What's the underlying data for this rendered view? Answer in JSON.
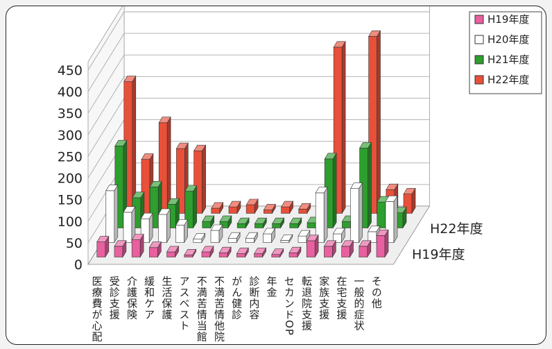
{
  "chart_data": {
    "type": "bar",
    "title": "",
    "xlabel": "",
    "ylabel": "",
    "ylim": [
      0,
      450
    ],
    "yticks": [
      "0",
      "50",
      "100",
      "150",
      "200",
      "250",
      "300",
      "350",
      "400",
      "450"
    ],
    "depth_labels": [
      "H22年度",
      "H19年度"
    ],
    "legend_position": "top-right",
    "categories": [
      "医療費が心配",
      "受診支援",
      "介護保険",
      "緩和ケア",
      "生活保護",
      "アスベスト",
      "不満苦情当館",
      "不満苦情他院",
      "がん健診",
      "診断内容",
      "年金",
      "セカンドOP",
      "転退院支援",
      "家族支援",
      "在宅支援",
      "一般的症状",
      "その他"
    ],
    "series": [
      {
        "name": "H19年度",
        "color": "#e8609f",
        "values": [
          35,
          25,
          40,
          22,
          12,
          5,
          12,
          10,
          8,
          8,
          6,
          10,
          38,
          25,
          25,
          25,
          50
        ]
      },
      {
        "name": "H20年度",
        "color": "#ffffff",
        "values": [
          120,
          70,
          55,
          65,
          40,
          8,
          28,
          10,
          10,
          20,
          5,
          15,
          115,
          20,
          125,
          25,
          95
        ]
      },
      {
        "name": "H21年度",
        "color": "#2e9e2e",
        "values": [
          190,
          70,
          95,
          55,
          85,
          15,
          15,
          10,
          10,
          10,
          10,
          12,
          160,
          15,
          185,
          60,
          35
        ]
      },
      {
        "name": "H22年度",
        "color": "#e8503a",
        "values": [
          305,
          125,
          210,
          150,
          145,
          12,
          15,
          20,
          8,
          15,
          10,
          10,
          385,
          30,
          410,
          55,
          45
        ]
      }
    ]
  }
}
